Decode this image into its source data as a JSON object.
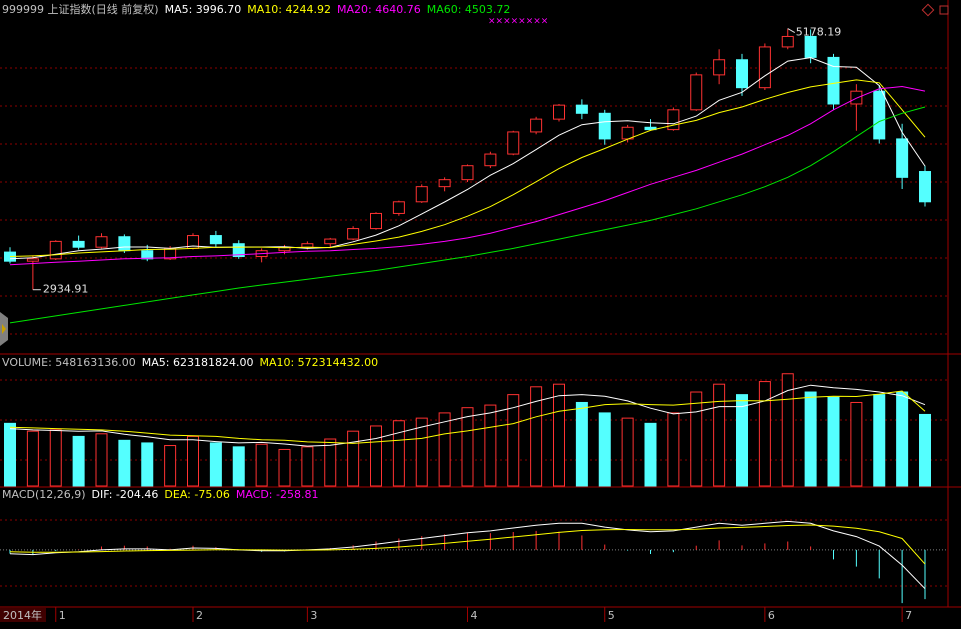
{
  "chart_data": {
    "type": "candlestick",
    "title": "999999 上证指数(日线 前复权)",
    "ylim": [
      2400,
      5320
    ],
    "up_color": "#ff3232",
    "down_color": "#54ffff",
    "candles": [
      [
        3258,
        3300,
        3160,
        3180
      ],
      [
        3180,
        3230,
        2934.91,
        3200
      ],
      [
        3200,
        3360,
        3190,
        3350
      ],
      [
        3350,
        3400,
        3280,
        3300
      ],
      [
        3300,
        3420,
        3290,
        3390
      ],
      [
        3390,
        3410,
        3250,
        3270
      ],
      [
        3270,
        3320,
        3180,
        3200
      ],
      [
        3200,
        3310,
        3190,
        3290
      ],
      [
        3290,
        3420,
        3280,
        3400
      ],
      [
        3400,
        3440,
        3300,
        3330
      ],
      [
        3330,
        3360,
        3200,
        3220
      ],
      [
        3220,
        3290,
        3170,
        3270
      ],
      [
        3270,
        3320,
        3240,
        3300
      ],
      [
        3300,
        3350,
        3280,
        3330
      ],
      [
        3330,
        3380,
        3300,
        3370
      ],
      [
        3370,
        3480,
        3360,
        3460
      ],
      [
        3460,
        3600,
        3450,
        3590
      ],
      [
        3590,
        3700,
        3570,
        3690
      ],
      [
        3690,
        3840,
        3680,
        3820
      ],
      [
        3820,
        3900,
        3780,
        3880
      ],
      [
        3880,
        4010,
        3860,
        4000
      ],
      [
        4000,
        4120,
        3980,
        4100
      ],
      [
        4100,
        4300,
        4090,
        4290
      ],
      [
        4290,
        4420,
        4270,
        4400
      ],
      [
        4400,
        4530,
        4380,
        4520
      ],
      [
        4520,
        4570,
        4400,
        4450
      ],
      [
        4450,
        4480,
        4180,
        4230
      ],
      [
        4230,
        4350,
        4200,
        4330
      ],
      [
        4330,
        4400,
        4300,
        4310
      ],
      [
        4310,
        4500,
        4300,
        4480
      ],
      [
        4480,
        4800,
        4470,
        4780
      ],
      [
        4780,
        5000,
        4700,
        4910
      ],
      [
        4910,
        4960,
        4600,
        4670
      ],
      [
        4670,
        5050,
        4650,
        5020
      ],
      [
        5020,
        5178.19,
        5000,
        5110
      ],
      [
        5110,
        5170,
        4880,
        4930
      ],
      [
        4930,
        4960,
        4480,
        4530
      ],
      [
        4530,
        4700,
        4300,
        4640
      ],
      [
        4640,
        4690,
        4190,
        4230
      ],
      [
        4230,
        4360,
        3800,
        3900
      ],
      [
        3950,
        4000,
        3650,
        3690
      ]
    ],
    "lines": [
      {
        "name": "MA5: 3996.70",
        "color": "#ffffff",
        "values": [
          3200,
          3210,
          3240,
          3270,
          3284,
          3302,
          3302,
          3290,
          3310,
          3298,
          3302,
          3302,
          3304,
          3290,
          3298,
          3346,
          3404,
          3484,
          3586,
          3688,
          3796,
          3918,
          4018,
          4138,
          4262,
          4352,
          4378,
          4386,
          4368,
          4360,
          4426,
          4562,
          4630,
          4772,
          4898,
          4928,
          4852,
          4846,
          4688,
          4286,
          3996.7
        ]
      },
      {
        "name": "MA10: 4244.92",
        "color": "#ffff00",
        "values": [
          3220,
          3225,
          3235,
          3250,
          3260,
          3270,
          3280,
          3282,
          3290,
          3300,
          3300,
          3301,
          3296,
          3299,
          3297,
          3324,
          3353,
          3387,
          3436,
          3493,
          3566,
          3649,
          3751,
          3862,
          3975,
          4070,
          4148,
          4228,
          4303,
          4349,
          4389,
          4456,
          4504,
          4570,
          4629,
          4677,
          4707,
          4737,
          4712,
          4480,
          4244.92
        ]
      },
      {
        "name": "MA20: 4640.76",
        "color": "#ff00ff",
        "values": [
          3150,
          3160,
          3170,
          3180,
          3190,
          3200,
          3205,
          3210,
          3220,
          3225,
          3235,
          3245,
          3255,
          3265,
          3270,
          3280,
          3290,
          3305,
          3325,
          3350,
          3380,
          3420,
          3470,
          3520,
          3580,
          3640,
          3700,
          3770,
          3840,
          3900,
          3960,
          4030,
          4100,
          4180,
          4260,
          4360,
          4480,
          4580,
          4660,
          4680,
          4640.76
        ]
      },
      {
        "name": "MA60: 4503.72",
        "color": "#00e600",
        "values": [
          2650,
          2680,
          2710,
          2740,
          2770,
          2800,
          2830,
          2860,
          2890,
          2920,
          2950,
          2975,
          3000,
          3025,
          3050,
          3075,
          3100,
          3130,
          3160,
          3190,
          3220,
          3255,
          3290,
          3330,
          3370,
          3410,
          3450,
          3490,
          3530,
          3580,
          3630,
          3690,
          3750,
          3820,
          3900,
          4000,
          4120,
          4250,
          4380,
          4450,
          4503.72
        ]
      }
    ],
    "high_label": "5178.19",
    "low_label": "2934.91",
    "marker_text": "××××××××",
    "categories": [
      null,
      null,
      "1",
      null,
      null,
      null,
      null,
      null,
      "2",
      null,
      null,
      null,
      null,
      "3",
      null,
      null,
      null,
      null,
      null,
      null,
      "4",
      null,
      null,
      null,
      null,
      null,
      "5",
      null,
      null,
      null,
      null,
      null,
      null,
      "6",
      null,
      null,
      null,
      null,
      null,
      "7",
      null
    ],
    "year_label": "2014年",
    "volume": {
      "title": "VOLUME: 548163136.00",
      "ylim": [
        0,
        950000000
      ],
      "values": [
        480000000.0,
        420000000.0,
        430000000.0,
        380000000.0,
        400000000.0,
        350000000.0,
        330000000.0,
        310000000.0,
        380000000.0,
        330000000.0,
        300000000.0,
        320000000.0,
        280000000.0,
        300000000.0,
        360000000.0,
        420000000.0,
        460000000.0,
        500000000.0,
        520000000.0,
        560000000.0,
        600000000.0,
        620000000.0,
        700000000.0,
        760000000.0,
        780000000.0,
        640000000.0,
        560000000.0,
        520000000.0,
        480000000.0,
        560000000.0,
        720000000.0,
        780000000.0,
        700000000.0,
        800000000.0,
        860000000.0,
        720000000.0,
        680000000.0,
        640000000.0,
        700000000.0,
        720000000.0,
        548163136
      ],
      "lines": [
        {
          "name": "MA5: 623181824.00",
          "color": "#ffffff",
          "values": [
            440000000.0,
            430000000.0,
            425000000.0,
            420000000.0,
            422000000.0,
            396000000.0,
            378000000.0,
            354000000.0,
            354000000.0,
            340000000.0,
            330000000.0,
            334000000.0,
            322000000.0,
            306000000.0,
            312000000.0,
            336000000.0,
            364000000.0,
            408000000.0,
            452000000.0,
            492000000.0,
            532000000.0,
            560000000.0,
            600000000.0,
            648000000.0,
            692000000.0,
            700000000.0,
            688000000.0,
            652000000.0,
            596000000.0,
            552000000.0,
            568000000.0,
            608000000.0,
            608000000.0,
            652000000.0,
            732000000.0,
            772000000.0,
            752000000.0,
            740000000.0,
            720000000.0,
            692000000.0,
            623181824
          ]
        },
        {
          "name": "MA10: 572314432.00",
          "color": "#ffff00",
          "values": [
            450000000.0,
            445000000.0,
            440000000.0,
            435000000.0,
            430000000.0,
            420000000.0,
            405000000.0,
            390000000.0,
            385000000.0,
            380000000.0,
            365000000.0,
            355000000.0,
            350000000.0,
            338000000.0,
            333000000.0,
            326000000.0,
            338000000.0,
            351000000.0,
            365000000.0,
            399000000.0,
            422000000.0,
            450000000.0,
            478000000.0,
            530000000.0,
            572000000.0,
            596000000.0,
            624000000.0,
            630000000.0,
            624000000.0,
            620000000.0,
            634000000.0,
            648000000.0,
            654000000.0,
            652000000.0,
            664000000.0,
            680000000.0,
            688000000.0,
            686000000.0,
            704000000.0,
            728000000.0,
            572314432
          ]
        }
      ]
    },
    "macd": {
      "title": "MACD(12,26,9)",
      "ylim": [
        -290,
        315
      ],
      "bars": {
        "name": "MACD: -258.81",
        "color": "#ff00ff",
        "up_color": "#ff3232",
        "down_color": "#54ffff",
        "values": [
          -20,
          -26,
          -6,
          2,
          18,
          22,
          18,
          6,
          22,
          14,
          -2,
          -10,
          -8,
          2,
          10,
          24,
          44,
          60,
          72,
          82,
          90,
          88,
          94,
          100,
          96,
          76,
          28,
          -4,
          -22,
          -12,
          22,
          50,
          24,
          34,
          44,
          18,
          -50,
          -88,
          -150,
          -280,
          -258.81
        ]
      },
      "lines": [
        {
          "name": "DIF: -204.46",
          "color": "#ffffff",
          "values": [
            -20,
            -25,
            -15,
            -10,
            0,
            5,
            5,
            0,
            10,
            8,
            0,
            -5,
            -5,
            0,
            5,
            15,
            30,
            45,
            60,
            75,
            90,
            100,
            115,
            130,
            140,
            140,
            120,
            105,
            95,
            100,
            120,
            140,
            130,
            140,
            150,
            140,
            100,
            70,
            20,
            -80,
            -204.46
          ]
        },
        {
          "name": "DEA: -75.06",
          "color": "#ffff00",
          "values": [
            -10,
            -12,
            -12,
            -11,
            -9,
            -6,
            -4,
            -3,
            -1,
            1,
            1,
            0,
            -1,
            -1,
            0,
            3,
            8,
            15,
            24,
            34,
            45,
            56,
            68,
            80,
            92,
            102,
            106,
            107,
            106,
            106,
            109,
            115,
            118,
            123,
            128,
            131,
            125,
            114,
            95,
            60,
            -75.06
          ]
        }
      ]
    }
  }
}
